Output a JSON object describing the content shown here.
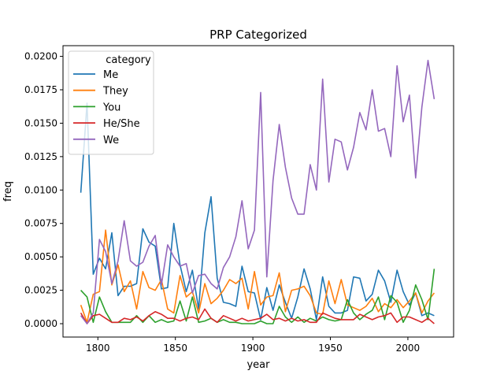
{
  "chart_data": {
    "type": "line",
    "title": "PRP Categorized",
    "xlabel": "year",
    "ylabel": "freq",
    "xlim": [
      1777.5,
      2029.5
    ],
    "ylim": [
      -0.001,
      0.0208
    ],
    "xticks": [
      1800,
      1850,
      1900,
      1950,
      2000
    ],
    "yticks": [
      0.0,
      0.0025,
      0.005,
      0.0075,
      0.01,
      0.0125,
      0.015,
      0.0175,
      0.02
    ],
    "ytick_labels": [
      "0.0000",
      "0.0025",
      "0.0050",
      "0.0075",
      "0.0100",
      "0.0125",
      "0.0150",
      "0.0175",
      "0.0200"
    ],
    "grid": false,
    "legend": {
      "title": "category",
      "placement": "top-left"
    },
    "x": [
      1789,
      1793,
      1797,
      1801,
      1805,
      1809,
      1813,
      1817,
      1821,
      1825,
      1829,
      1833,
      1837,
      1841,
      1845,
      1849,
      1853,
      1857,
      1861,
      1865,
      1869,
      1873,
      1877,
      1881,
      1885,
      1889,
      1893,
      1897,
      1901,
      1905,
      1909,
      1913,
      1917,
      1921,
      1925,
      1929,
      1933,
      1937,
      1941,
      1945,
      1949,
      1953,
      1957,
      1961,
      1965,
      1969,
      1973,
      1977,
      1981,
      1985,
      1989,
      1993,
      1997,
      2001,
      2005,
      2009,
      2013,
      2017
    ],
    "series": [
      {
        "name": "Me",
        "color": "#1f77b4",
        "values": [
          0.0098,
          0.0165,
          0.0037,
          0.0049,
          0.0041,
          0.0068,
          0.0021,
          0.0028,
          0.0028,
          0.003,
          0.0071,
          0.0061,
          0.0058,
          0.0026,
          0.0027,
          0.0075,
          0.0044,
          0.0024,
          0.004,
          0.0011,
          0.0068,
          0.0095,
          0.0034,
          0.0016,
          0.0015,
          0.0013,
          0.0043,
          0.0024,
          0.0023,
          0.0003,
          0.0027,
          0.001,
          0.0029,
          0.0016,
          0.0004,
          0.002,
          0.0041,
          0.0026,
          0.0003,
          0.0035,
          0.0013,
          0.0008,
          0.0008,
          0.001,
          0.0035,
          0.0034,
          0.0017,
          0.0022,
          0.004,
          0.0032,
          0.0016,
          0.004,
          0.0024,
          0.0014,
          0.0023,
          0.0006,
          0.0008,
          0.0006
        ]
      },
      {
        "name": "They",
        "color": "#ff7f0e",
        "values": [
          0.0014,
          0.0001,
          0.0022,
          0.0024,
          0.007,
          0.0029,
          0.0044,
          0.0024,
          0.0032,
          0.0011,
          0.0039,
          0.0027,
          0.0025,
          0.0033,
          0.0011,
          0.0008,
          0.0036,
          0.002,
          0.0024,
          0.0008,
          0.003,
          0.0015,
          0.0019,
          0.0025,
          0.0033,
          0.003,
          0.0034,
          0.0011,
          0.0039,
          0.0014,
          0.002,
          0.0021,
          0.0038,
          0.0009,
          0.0025,
          0.0026,
          0.0028,
          0.0021,
          0.0008,
          0.0007,
          0.0032,
          0.0015,
          0.0033,
          0.0014,
          0.0012,
          0.001,
          0.0013,
          0.0019,
          0.0009,
          0.0015,
          0.0012,
          0.0018,
          0.0012,
          0.0017,
          0.0023,
          0.0008,
          0.0017,
          0.0023
        ]
      },
      {
        "name": "You",
        "color": "#2ca02c",
        "values": [
          0.0025,
          0.002,
          0.0001,
          0.002,
          0.0009,
          0.0001,
          0.0001,
          0.0001,
          0.0001,
          0.0006,
          0.0001,
          0.0006,
          0.0001,
          0.0003,
          0.0001,
          0.0002,
          0.0017,
          0.0002,
          0.002,
          0.0001,
          0.0002,
          0.0004,
          0.0001,
          0.0003,
          0.0001,
          0.0001,
          0.0,
          0.0,
          0.0,
          0.0002,
          0.0,
          0.0,
          0.0013,
          0.0005,
          0.0001,
          0.0005,
          0.0001,
          0.0004,
          0.0002,
          0.0005,
          0.0003,
          0.0002,
          0.0003,
          0.0018,
          0.0008,
          0.0003,
          0.0007,
          0.001,
          0.002,
          0.0003,
          0.0021,
          0.0016,
          0.0001,
          0.001,
          0.0029,
          0.0018,
          0.0003,
          0.0041
        ]
      },
      {
        "name": "He/She",
        "color": "#d62728",
        "values": [
          0.0008,
          0.0,
          0.0006,
          0.0007,
          0.0004,
          0.0001,
          0.0001,
          0.0004,
          0.0003,
          0.0005,
          0.0002,
          0.0006,
          0.0009,
          0.0007,
          0.0004,
          0.0004,
          0.0002,
          0.0004,
          0.0005,
          0.0003,
          0.0011,
          0.0004,
          0.0001,
          0.0006,
          0.0004,
          0.0002,
          0.0004,
          0.0002,
          0.0003,
          0.0004,
          0.0007,
          0.0003,
          0.0004,
          0.0002,
          0.0004,
          0.0002,
          0.0003,
          0.0001,
          0.0001,
          0.0008,
          0.0006,
          0.0004,
          0.0003,
          0.0003,
          0.0003,
          0.0007,
          0.0005,
          0.0003,
          0.0005,
          0.0006,
          0.0008,
          0.0001,
          0.0005,
          0.0005,
          0.0003,
          0.0001,
          0.0004,
          0.0
        ]
      },
      {
        "name": "We",
        "color": "#9467bd",
        "values": [
          0.0006,
          0.0,
          0.0008,
          0.0063,
          0.0054,
          0.003,
          0.0047,
          0.0077,
          0.0047,
          0.0043,
          0.0046,
          0.0058,
          0.0066,
          0.0029,
          0.0059,
          0.005,
          0.0043,
          0.0045,
          0.0023,
          0.0036,
          0.0037,
          0.003,
          0.0026,
          0.0042,
          0.005,
          0.0065,
          0.0092,
          0.0056,
          0.007,
          0.0173,
          0.0035,
          0.0107,
          0.0149,
          0.0117,
          0.0094,
          0.0082,
          0.0082,
          0.0119,
          0.01,
          0.0183,
          0.0106,
          0.0138,
          0.0136,
          0.0115,
          0.0132,
          0.0158,
          0.0145,
          0.0175,
          0.0144,
          0.0146,
          0.0125,
          0.0193,
          0.0151,
          0.0171,
          0.0109,
          0.0162,
          0.0197,
          0.0168
        ]
      }
    ]
  }
}
